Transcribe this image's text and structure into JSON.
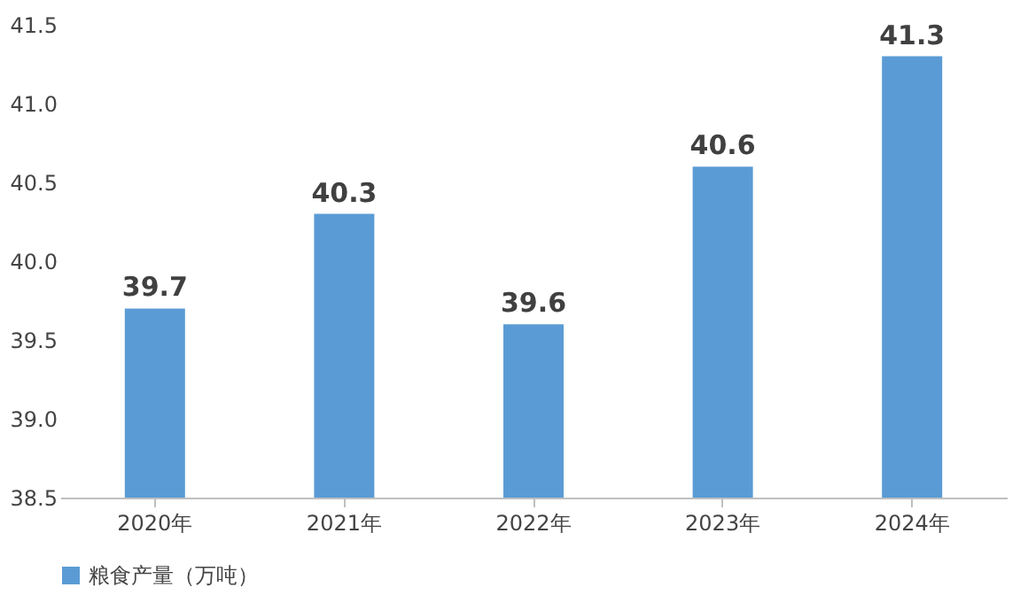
{
  "chart_data": {
    "type": "bar",
    "categories": [
      "2020年",
      "2021年",
      "2022年",
      "2023年",
      "2024年"
    ],
    "series": [
      {
        "name": "粮食产量（万吨）",
        "color": "#5b9bd5",
        "values": [
          39.7,
          40.3,
          39.6,
          40.6,
          41.3
        ]
      }
    ],
    "ylim": [
      38.5,
      41.5
    ],
    "yticks": [
      38.5,
      {
        "value": 39,
        "label": "39.0"
      },
      39.5,
      {
        "value": 40,
        "label": "40.0"
      },
      40.5,
      {
        "value": 41,
        "label": "41.0"
      },
      41.5
    ],
    "data_labels": true,
    "grid": false,
    "legend": "bottom"
  }
}
